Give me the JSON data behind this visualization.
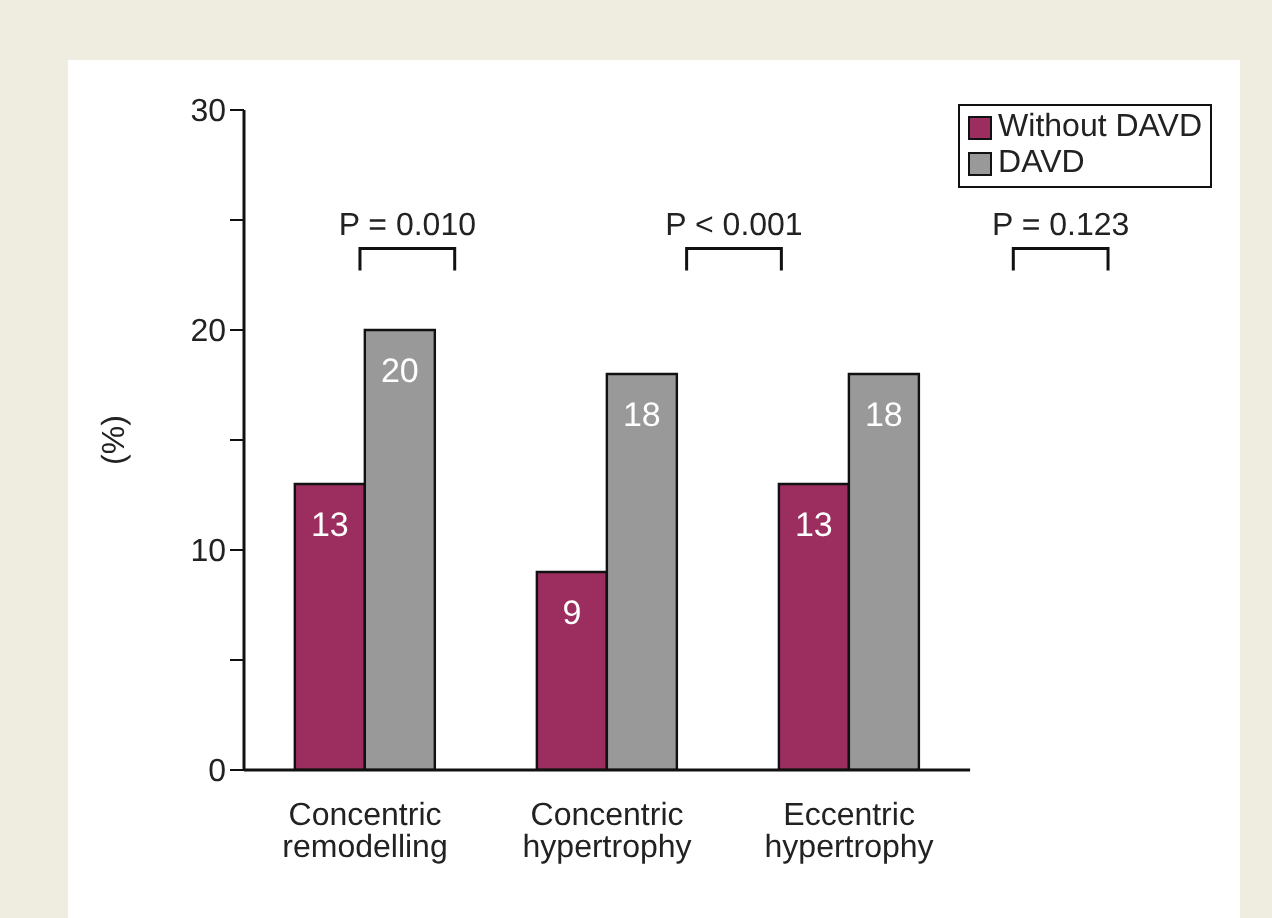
{
  "chart_data": {
    "type": "bar",
    "ylabel": "(%)",
    "categories": [
      "Concentric remodelling",
      "Concentric hypertrophy",
      "Eccentric hypertrophy"
    ],
    "series": [
      {
        "name": "Without DAVD",
        "color": "#9b2d5f",
        "values": [
          13,
          9,
          13
        ]
      },
      {
        "name": "DAVD",
        "color": "#999999",
        "values": [
          20,
          18,
          18
        ]
      }
    ],
    "ylim": [
      0,
      30
    ],
    "yticks": [
      0,
      {
        "value": 5,
        "label": null
      },
      10,
      {
        "value": 15,
        "label": null
      },
      20,
      {
        "value": 25,
        "label": null
      },
      30
    ],
    "data_labels": true,
    "grid": false,
    "legend": "top right",
    "annotations": [
      "P = 0.010",
      "P < 0.001",
      "P = 0.123"
    ]
  }
}
